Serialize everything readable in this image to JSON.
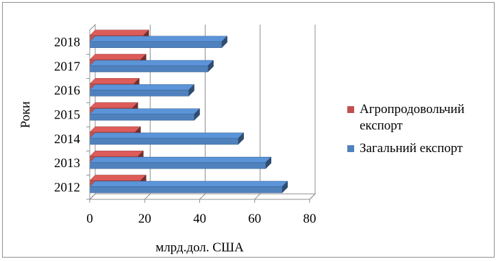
{
  "chart_data": {
    "type": "bar",
    "orientation": "horizontal",
    "style": "3d",
    "categories": [
      "2012",
      "2013",
      "2014",
      "2015",
      "2016",
      "2017",
      "2018"
    ],
    "series": [
      {
        "name": "Агропродовольчий експорт",
        "color": "#c0504d",
        "values": [
          18.5,
          17.5,
          16.5,
          15.5,
          16.0,
          18.5,
          19.5
        ]
      },
      {
        "name": "Загальний експорт",
        "color": "#4f81bd",
        "values": [
          70.0,
          64.0,
          54.0,
          38.0,
          36.0,
          43.0,
          48.0
        ]
      }
    ],
    "xlabel": "млрд.дол. США",
    "ylabel": "Роки",
    "xlim": [
      0,
      80
    ],
    "xticks": [
      "0",
      "20",
      "40",
      "60",
      "80"
    ],
    "grid": true,
    "legend_position": "right"
  },
  "legend": {
    "items": [
      {
        "label_lines": [
          "Агропродовольчий",
          "експорт"
        ],
        "color": "#c0504d"
      },
      {
        "label_lines": [
          "Загальний експорт"
        ],
        "color": "#4f81bd"
      }
    ]
  }
}
